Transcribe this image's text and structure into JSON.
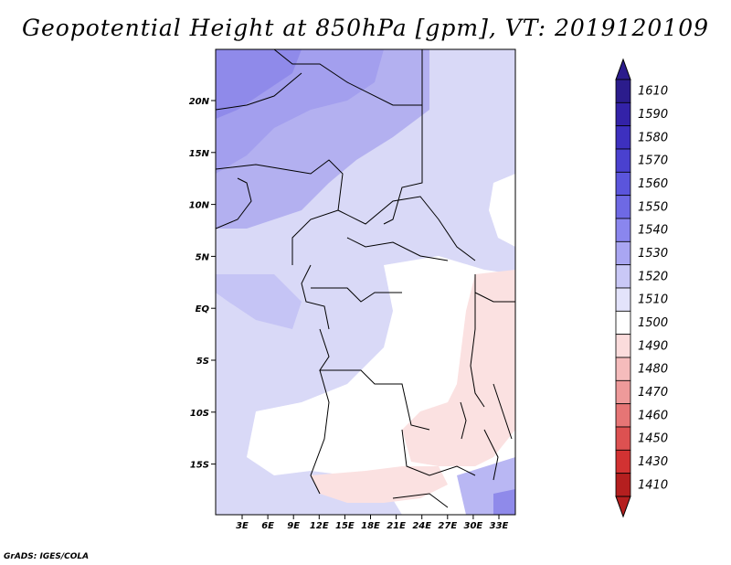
{
  "title": "Geopotential Height at 850hPa [gpm], VT: 2019120109",
  "footer": "GrADS: IGES/COLA",
  "map": {
    "lon_labels": [
      "3E",
      "6E",
      "9E",
      "12E",
      "15E",
      "18E",
      "21E",
      "24E",
      "27E",
      "30E",
      "33E"
    ],
    "lat_labels": [
      "20N",
      "15N",
      "10N",
      "5N",
      "EQ",
      "5S",
      "10S",
      "15S"
    ]
  },
  "colorbar": {
    "labels": [
      "1610",
      "1590",
      "1580",
      "1570",
      "1560",
      "1550",
      "1540",
      "1530",
      "1520",
      "1510",
      "1500",
      "1490",
      "1480",
      "1470",
      "1460",
      "1450",
      "1430",
      "1410"
    ],
    "colors": [
      "#2b1c8c",
      "#3322a8",
      "#3d30bf",
      "#4a41cf",
      "#5b55dc",
      "#6e69e4",
      "#8a86ee",
      "#a9a6f2",
      "#c9c8f6",
      "#e3e3fb",
      "#ffffff",
      "#fbdcdc",
      "#f5bcbc",
      "#ee9a9a",
      "#e67575",
      "#dd5151",
      "#d23232",
      "#b51f1f"
    ]
  }
}
